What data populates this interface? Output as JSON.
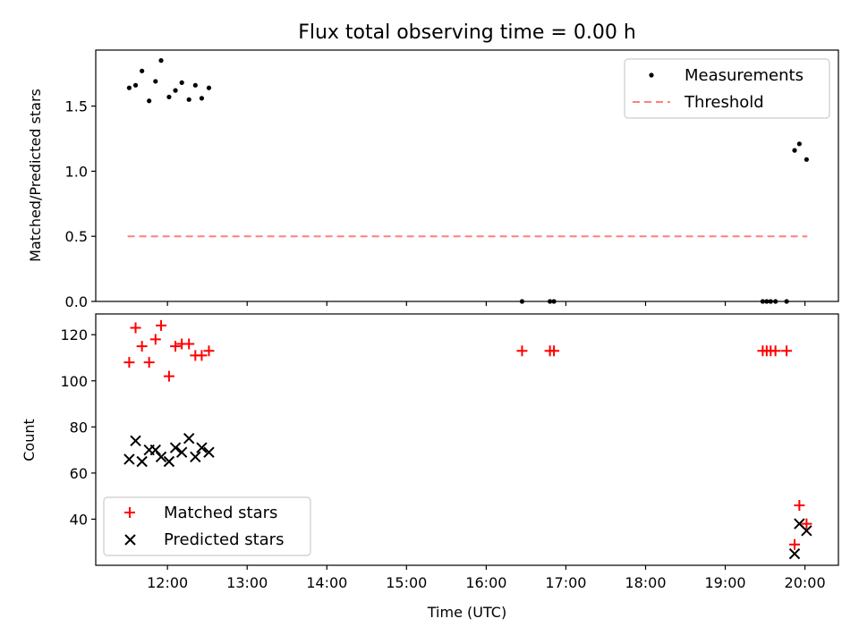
{
  "chart_data": [
    {
      "type": "scatter",
      "title": "Flux total observing time = 0.00 h",
      "ylabel": "Matched/Predicted stars",
      "xlim": [
        11.1,
        20.42
      ],
      "ylim": [
        0,
        1.93
      ],
      "yticks": [
        0.0,
        0.5,
        1.0,
        1.5
      ],
      "ytick_labels": [
        "0.0",
        "0.5",
        "1.0",
        "1.5"
      ],
      "legend_position": "top-right",
      "series": [
        {
          "name": "Measurements",
          "marker": "dot",
          "color": "#000000",
          "x": [
            11.52,
            11.6,
            11.68,
            11.77,
            11.85,
            11.92,
            12.02,
            12.1,
            12.18,
            12.27,
            12.35,
            12.43,
            12.52,
            16.45,
            16.8,
            16.85,
            19.47,
            19.52,
            19.57,
            19.63,
            19.77,
            19.87,
            19.93,
            20.02
          ],
          "y": [
            1.64,
            1.66,
            1.77,
            1.54,
            1.69,
            1.85,
            1.57,
            1.62,
            1.68,
            1.55,
            1.66,
            1.56,
            1.64,
            0.0,
            0.0,
            0.0,
            0.0,
            0.0,
            0.0,
            0.0,
            0.0,
            1.16,
            1.21,
            1.09
          ]
        },
        {
          "name": "Threshold",
          "marker": "dashed-line",
          "color": "#ff7f7f",
          "x": [
            11.5,
            20.03
          ],
          "y": [
            0.5,
            0.5
          ]
        }
      ]
    },
    {
      "type": "scatter",
      "ylabel": "Count",
      "xlabel": "Time (UTC)",
      "xlim": [
        11.1,
        20.42
      ],
      "ylim": [
        20,
        129
      ],
      "yticks": [
        40,
        60,
        80,
        100,
        120
      ],
      "ytick_labels": [
        "40",
        "60",
        "80",
        "100",
        "120"
      ],
      "xticks": [
        12,
        13,
        14,
        15,
        16,
        17,
        18,
        19,
        20
      ],
      "xtick_labels": [
        "12:00",
        "13:00",
        "14:00",
        "15:00",
        "16:00",
        "17:00",
        "18:00",
        "19:00",
        "20:00"
      ],
      "legend_position": "lower-left",
      "series": [
        {
          "name": "Matched stars",
          "marker": "plus",
          "color": "#ff0000",
          "x": [
            11.52,
            11.6,
            11.68,
            11.77,
            11.85,
            11.92,
            12.02,
            12.1,
            12.18,
            12.27,
            12.35,
            12.43,
            12.52,
            16.45,
            16.8,
            16.85,
            19.47,
            19.52,
            19.57,
            19.63,
            19.77,
            19.87,
            19.93,
            20.02
          ],
          "y": [
            108,
            123,
            115,
            108,
            118,
            124,
            102,
            115,
            116,
            116,
            111,
            111,
            113,
            113,
            113,
            113,
            113,
            113,
            113,
            113,
            113,
            29,
            46,
            38
          ]
        },
        {
          "name": "Predicted stars",
          "marker": "x",
          "color": "#000000",
          "x": [
            11.52,
            11.6,
            11.68,
            11.77,
            11.85,
            11.92,
            12.02,
            12.1,
            12.18,
            12.27,
            12.35,
            12.43,
            12.52,
            19.87,
            19.93,
            20.02
          ],
          "y": [
            66,
            74,
            65,
            70,
            70,
            67,
            65,
            71,
            69,
            75,
            67,
            71,
            69,
            25,
            38,
            35
          ]
        }
      ]
    }
  ]
}
